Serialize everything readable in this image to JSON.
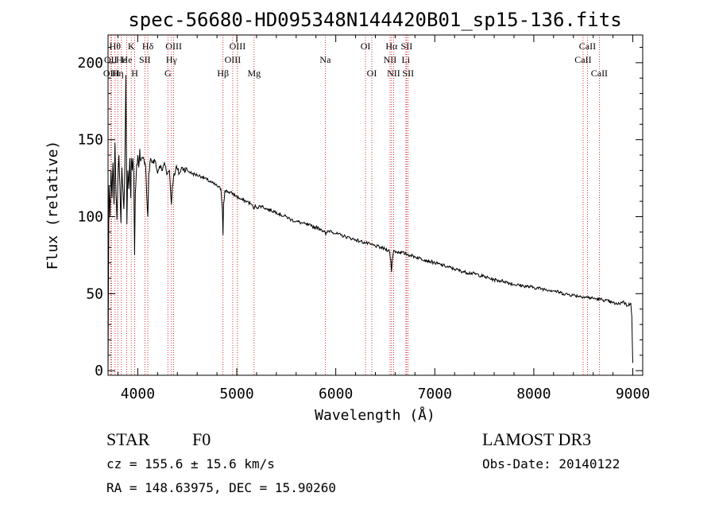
{
  "chart_data": {
    "type": "line",
    "title": "spec-56680-HD095348N144420B01_sp15-136.fits",
    "xlabel": "Wavelength (Å)",
    "ylabel": "Flux (relative)",
    "xlim": [
      3700,
      9100
    ],
    "ylim": [
      -3,
      218
    ],
    "x_ticks": [
      4000,
      5000,
      6000,
      7000,
      8000,
      9000
    ],
    "x_tick_labels": [
      "4000",
      "5000",
      "6000",
      "7000",
      "8000",
      "9000"
    ],
    "y_ticks": [
      0,
      50,
      100,
      150,
      200
    ],
    "y_tick_labels": [
      "0",
      "50",
      "100",
      "150",
      "200"
    ],
    "series": [
      {
        "name": "Flux",
        "points": [
          [
            3700,
            0
          ],
          [
            3705,
            65
          ],
          [
            3710,
            120
          ],
          [
            3720,
            100
          ],
          [
            3730,
            130
          ],
          [
            3740,
            112
          ],
          [
            3750,
            135
          ],
          [
            3760,
            108
          ],
          [
            3770,
            148
          ],
          [
            3780,
            115
          ],
          [
            3790,
            98
          ],
          [
            3800,
            125
          ],
          [
            3810,
            140
          ],
          [
            3820,
            120
          ],
          [
            3830,
            96
          ],
          [
            3840,
            132
          ],
          [
            3850,
            118
          ],
          [
            3860,
            105
          ],
          [
            3870,
            135
          ],
          [
            3880,
            192
          ],
          [
            3890,
            95
          ],
          [
            3900,
            130
          ],
          [
            3910,
            118
          ],
          [
            3920,
            138
          ],
          [
            3930,
            112
          ],
          [
            3935,
            138
          ],
          [
            3945,
            130
          ],
          [
            3950,
            138
          ],
          [
            3960,
            128
          ],
          [
            3968,
            75
          ],
          [
            3975,
            115
          ],
          [
            3985,
            128
          ],
          [
            4000,
            140
          ],
          [
            4010,
            132
          ],
          [
            4020,
            144
          ],
          [
            4030,
            136
          ],
          [
            4050,
            138
          ],
          [
            4070,
            134
          ],
          [
            4080,
            132
          ],
          [
            4090,
            115
          ],
          [
            4102,
            100
          ],
          [
            4112,
            128
          ],
          [
            4130,
            138
          ],
          [
            4150,
            135
          ],
          [
            4180,
            136
          ],
          [
            4200,
            128
          ],
          [
            4220,
            133
          ],
          [
            4250,
            130
          ],
          [
            4270,
            135
          ],
          [
            4300,
            128
          ],
          [
            4320,
            130
          ],
          [
            4340,
            108
          ],
          [
            4350,
            120
          ],
          [
            4360,
            125
          ],
          [
            4385,
            132
          ],
          [
            4420,
            128
          ],
          [
            4450,
            132
          ],
          [
            4500,
            130
          ],
          [
            4550,
            128
          ],
          [
            4600,
            127
          ],
          [
            4650,
            126
          ],
          [
            4700,
            124
          ],
          [
            4750,
            122
          ],
          [
            4800,
            120
          ],
          [
            4840,
            118
          ],
          [
            4855,
            105
          ],
          [
            4861,
            88
          ],
          [
            4867,
            108
          ],
          [
            4880,
            117
          ],
          [
            4920,
            116
          ],
          [
            4960,
            115
          ],
          [
            5000,
            113
          ],
          [
            5050,
            111
          ],
          [
            5100,
            110
          ],
          [
            5150,
            108
          ],
          [
            5170,
            105
          ],
          [
            5183,
            107
          ],
          [
            5200,
            106
          ],
          [
            5250,
            107
          ],
          [
            5300,
            105
          ],
          [
            5350,
            104
          ],
          [
            5400,
            103
          ],
          [
            5450,
            101
          ],
          [
            5500,
            100
          ],
          [
            5550,
            98
          ],
          [
            5600,
            97
          ],
          [
            5650,
            96
          ],
          [
            5700,
            95
          ],
          [
            5750,
            94
          ],
          [
            5800,
            93
          ],
          [
            5850,
            92
          ],
          [
            5890,
            90
          ],
          [
            5900,
            88
          ],
          [
            5910,
            90
          ],
          [
            5950,
            91
          ],
          [
            6000,
            89
          ],
          [
            6050,
            88
          ],
          [
            6100,
            87
          ],
          [
            6150,
            86
          ],
          [
            6200,
            85
          ],
          [
            6250,
            84
          ],
          [
            6300,
            83
          ],
          [
            6350,
            82
          ],
          [
            6400,
            81
          ],
          [
            6450,
            80
          ],
          [
            6500,
            79
          ],
          [
            6540,
            78
          ],
          [
            6555,
            72
          ],
          [
            6563,
            64
          ],
          [
            6571,
            72
          ],
          [
            6585,
            78
          ],
          [
            6620,
            77
          ],
          [
            6650,
            77
          ],
          [
            6700,
            76
          ],
          [
            6750,
            75
          ],
          [
            6800,
            74
          ],
          [
            6850,
            73
          ],
          [
            6900,
            72
          ],
          [
            6950,
            71
          ],
          [
            7000,
            70
          ],
          [
            7100,
            68
          ],
          [
            7200,
            66
          ],
          [
            7300,
            64
          ],
          [
            7400,
            63
          ],
          [
            7500,
            61
          ],
          [
            7600,
            59
          ],
          [
            7700,
            58
          ],
          [
            7800,
            56
          ],
          [
            7900,
            55
          ],
          [
            8000,
            54
          ],
          [
            8100,
            53
          ],
          [
            8200,
            52
          ],
          [
            8300,
            50
          ],
          [
            8400,
            49
          ],
          [
            8500,
            48
          ],
          [
            8600,
            47
          ],
          [
            8700,
            46
          ],
          [
            8800,
            44
          ],
          [
            8850,
            43
          ],
          [
            8900,
            45
          ],
          [
            8950,
            42
          ],
          [
            8980,
            44
          ],
          [
            8990,
            35
          ],
          [
            9000,
            5
          ]
        ]
      }
    ],
    "line_markers": [
      {
        "wavelength": 3727,
        "label": "OII",
        "row": 1
      },
      {
        "wavelength": 3734,
        "label": "OIII",
        "row": 2
      },
      {
        "wavelength": 3771,
        "label": "Hθ",
        "row": 0
      },
      {
        "wavelength": 3798,
        "label": "Hη",
        "row": 2
      },
      {
        "wavelength": 3835,
        "label": "Hε",
        "row": 1
      },
      {
        "wavelength": 3889,
        "label": "He",
        "row": 1
      },
      {
        "wavelength": 3934,
        "label": "K",
        "row": 0
      },
      {
        "wavelength": 3969,
        "label": "H",
        "row": 2
      },
      {
        "wavelength": 4072,
        "label": "SII",
        "row": 1
      },
      {
        "wavelength": 4102,
        "label": "Hδ",
        "row": 0
      },
      {
        "wavelength": 4304,
        "label": "G",
        "row": 2
      },
      {
        "wavelength": 4341,
        "label": "Hγ",
        "row": 1
      },
      {
        "wavelength": 4363,
        "label": "OIII",
        "row": 0
      },
      {
        "wavelength": 4861,
        "label": "Hβ",
        "row": 2
      },
      {
        "wavelength": 4959,
        "label": "OIII",
        "row": 1
      },
      {
        "wavelength": 5007,
        "label": "OIII",
        "row": 0
      },
      {
        "wavelength": 5175,
        "label": "Mg",
        "row": 2
      },
      {
        "wavelength": 5894,
        "label": "Na",
        "row": 1
      },
      {
        "wavelength": 6300,
        "label": "OI",
        "row": 0
      },
      {
        "wavelength": 6364,
        "label": "OI",
        "row": 2
      },
      {
        "wavelength": 6548,
        "label": "NII",
        "row": 1
      },
      {
        "wavelength": 6563,
        "label": "Hα",
        "row": 0
      },
      {
        "wavelength": 6584,
        "label": "NII",
        "row": 2
      },
      {
        "wavelength": 6708,
        "label": "Li",
        "row": 1
      },
      {
        "wavelength": 6716,
        "label": "SII",
        "row": 0
      },
      {
        "wavelength": 6731,
        "label": "SII",
        "row": 2
      },
      {
        "wavelength": 8498,
        "label": "CaII",
        "row": 1
      },
      {
        "wavelength": 8542,
        "label": "CaII",
        "row": 0
      },
      {
        "wavelength": 8662,
        "label": "CaII",
        "row": 2
      }
    ]
  },
  "info": {
    "object_class": "STAR",
    "subclass": "F0",
    "survey": "LAMOST DR3",
    "redshift_line": "cz = 155.6 ± 15.6 km/s",
    "obs_date": "Obs-Date: 20140122",
    "coords": "RA = 148.63975, DEC =  15.90260"
  }
}
